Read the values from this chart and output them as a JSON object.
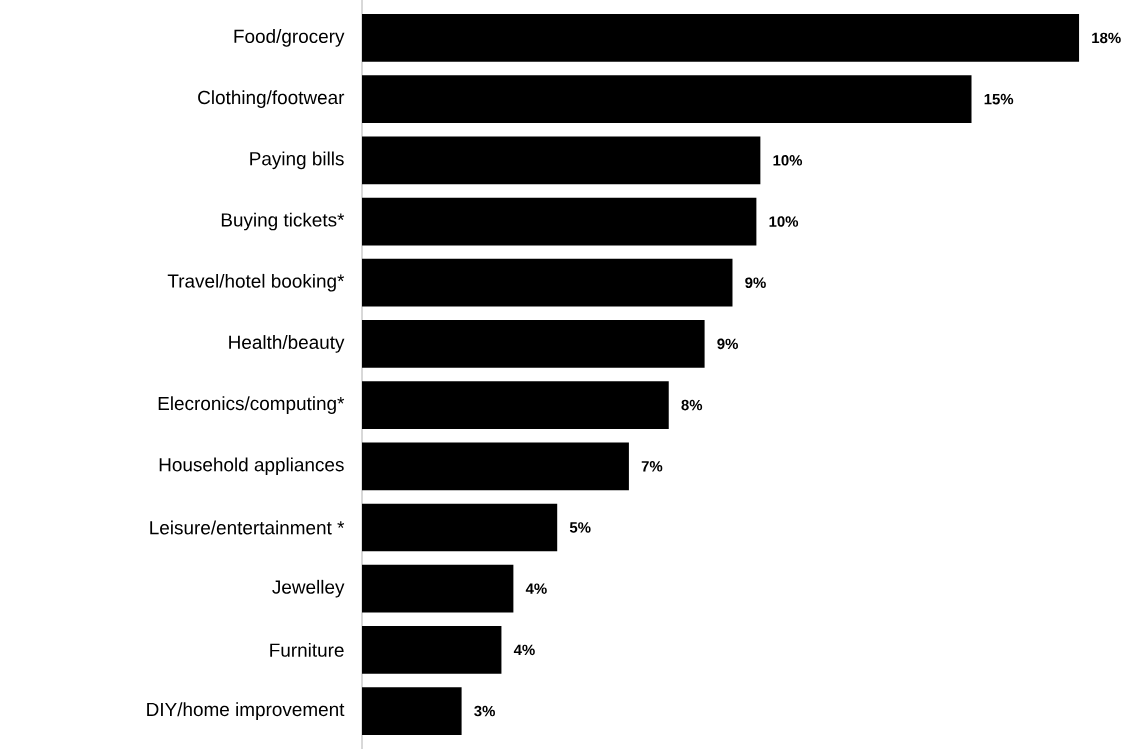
{
  "chart_data": {
    "type": "bar",
    "orientation": "horizontal",
    "categories": [
      "Food/grocery",
      "Clothing/footwear",
      "Paying bills",
      "Buying tickets*",
      "Travel/hotel booking*",
      "Health/beauty",
      "Elecronics/computing*",
      "Household appliances",
      "Leisure/entertainment *",
      "Jewelley",
      "Furniture",
      "DIY/home improvement"
    ],
    "values": [
      18,
      15.3,
      10,
      9.9,
      9.3,
      8.6,
      7.7,
      6.7,
      4.9,
      3.8,
      3.5,
      2.5
    ],
    "value_labels": [
      "18%",
      "15%",
      "10%",
      "10%",
      "9%",
      "9%",
      "8%",
      "7%",
      "5%",
      "4%",
      "4%",
      "3%"
    ],
    "color": "#000000"
  }
}
